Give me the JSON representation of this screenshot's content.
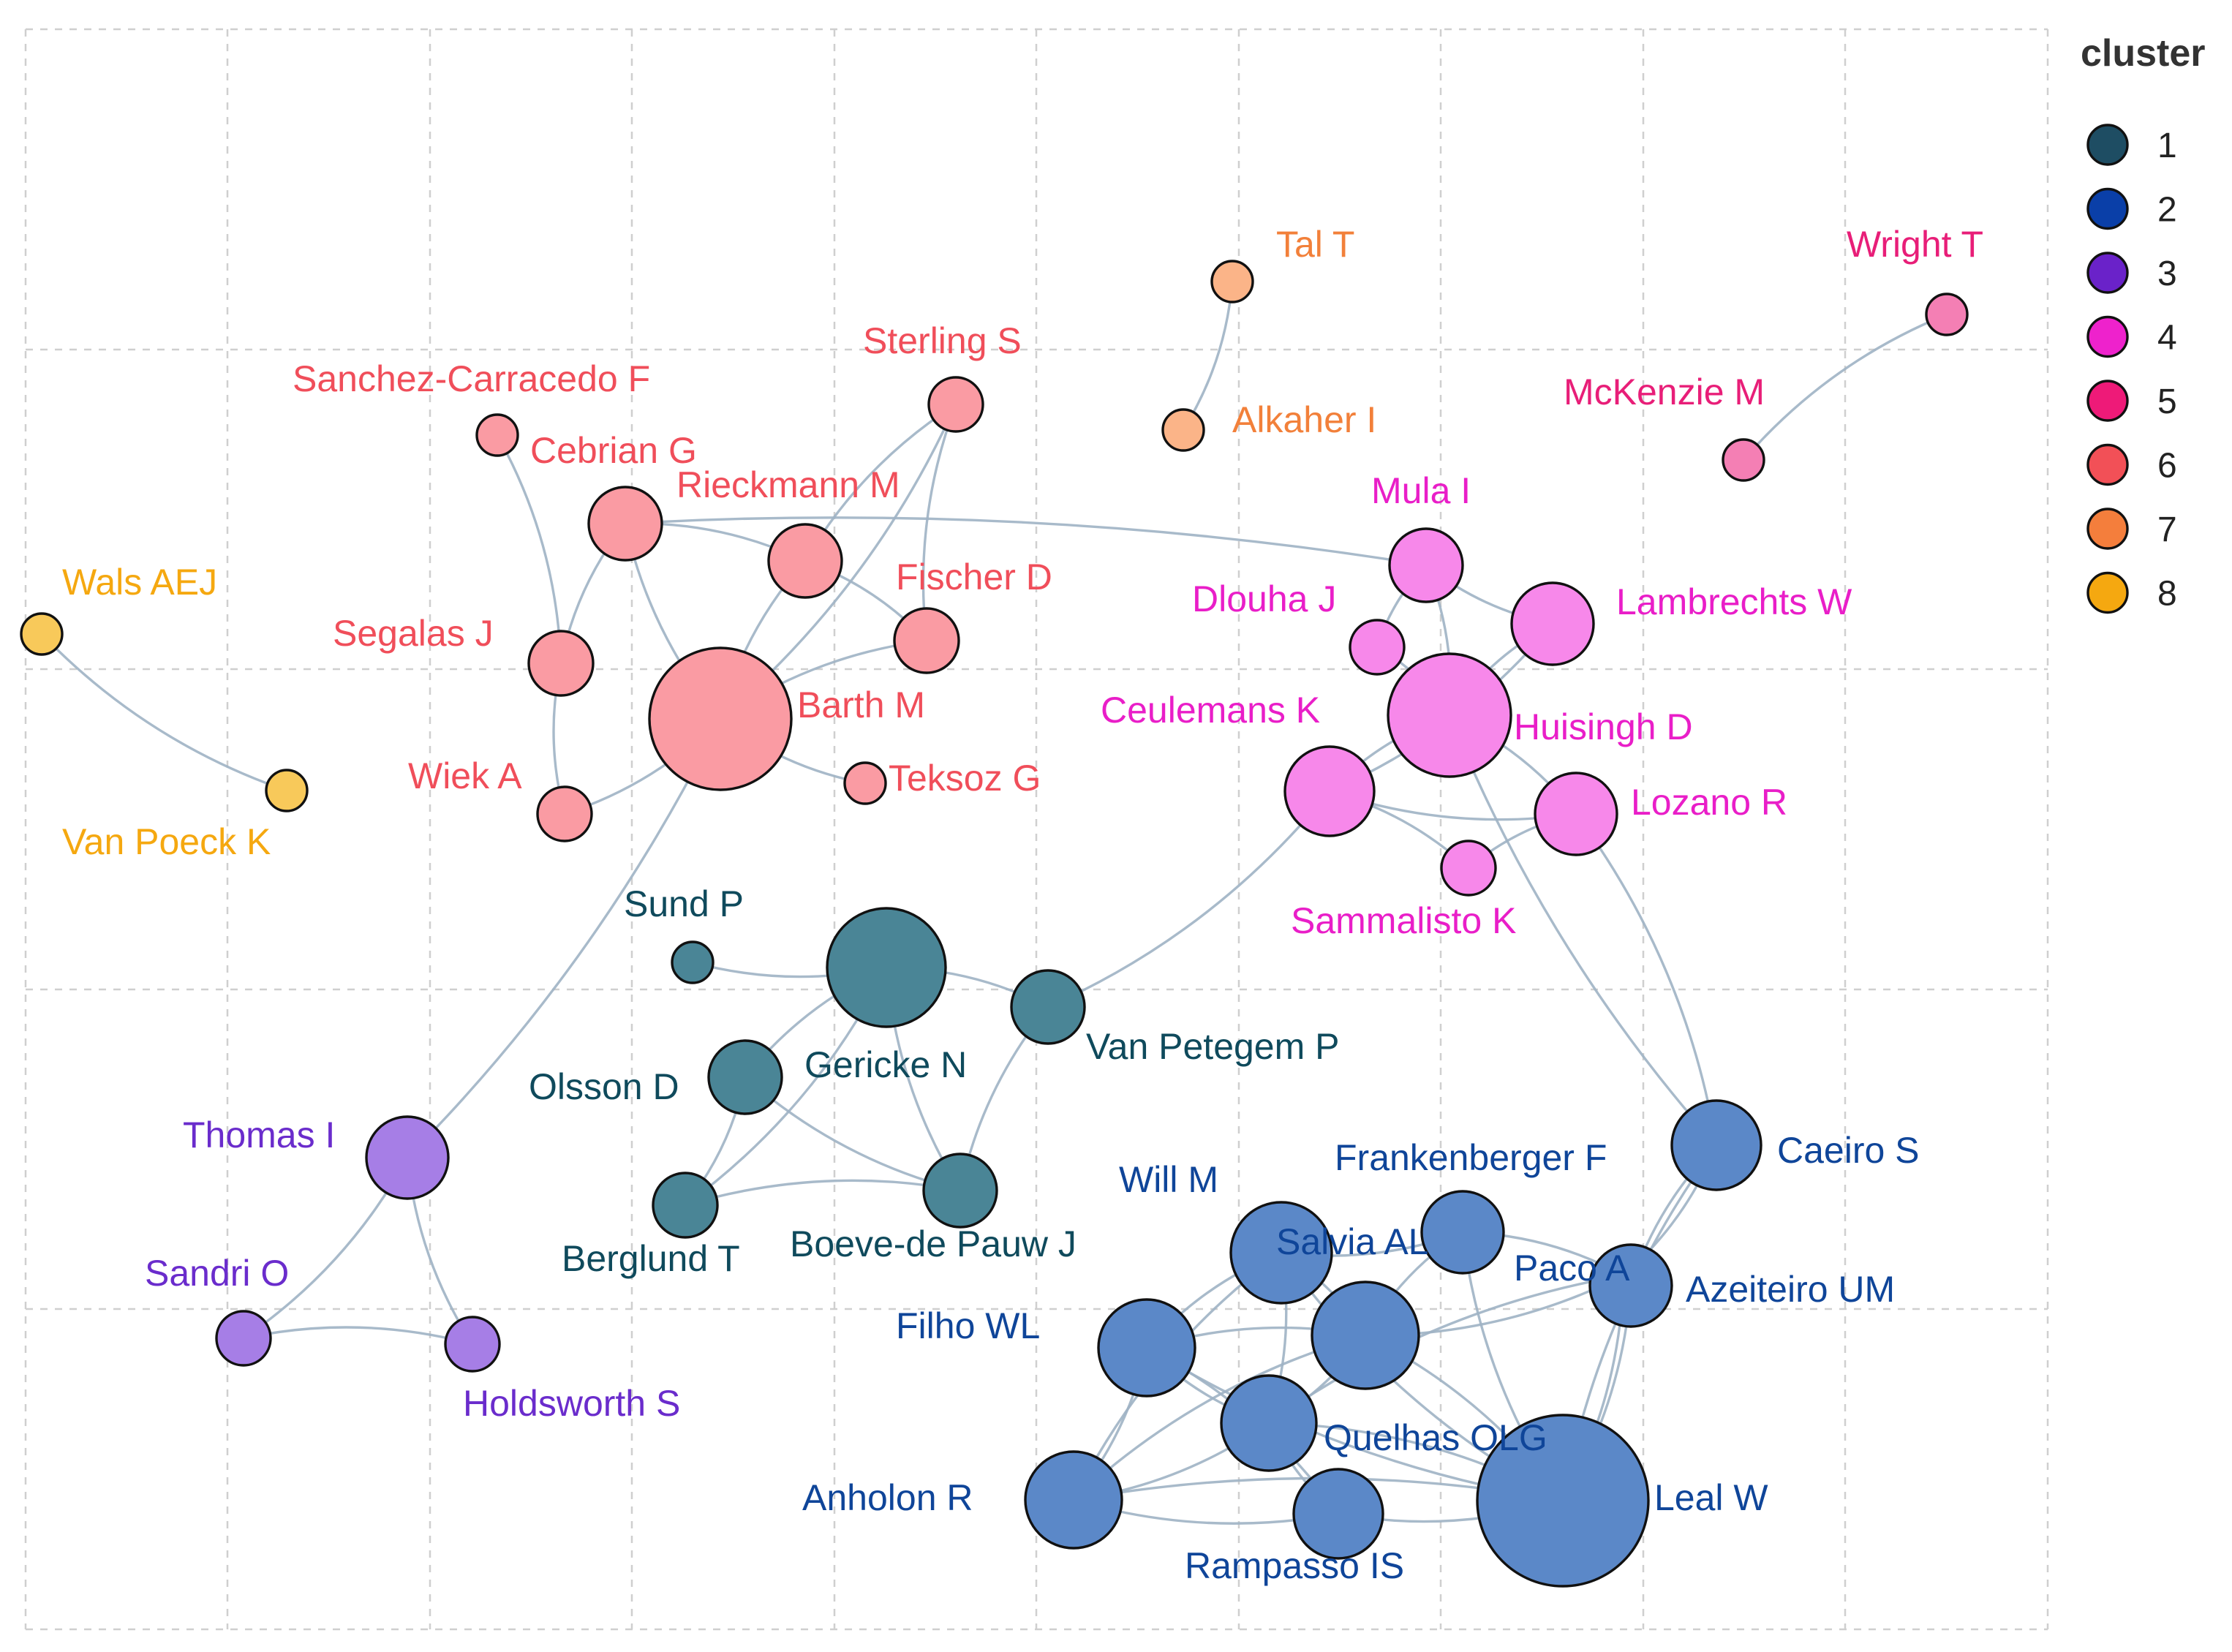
{
  "legend": {
    "title": "cluster",
    "items": [
      {
        "label": "1",
        "color": "#1e4d63"
      },
      {
        "label": "2",
        "color": "#0a3fa8"
      },
      {
        "label": "3",
        "color": "#6a22c9"
      },
      {
        "label": "4",
        "color": "#ee22cc"
      },
      {
        "label": "5",
        "color": "#ee1a78"
      },
      {
        "label": "6",
        "color": "#f25057"
      },
      {
        "label": "7",
        "color": "#f47e3c"
      },
      {
        "label": "8",
        "color": "#f5a810"
      }
    ]
  },
  "cluster_styles": {
    "1": {
      "fill": "#4a8596",
      "text": "#0f4a5c"
    },
    "2": {
      "fill": "#5b88c8",
      "text": "#0f4599"
    },
    "3": {
      "fill": "#a67ee6",
      "text": "#6a2ccc"
    },
    "4": {
      "fill": "#f788ea",
      "text": "#e91ec8"
    },
    "5": {
      "fill": "#f47fb4",
      "text": "#e81e78"
    },
    "6": {
      "fill": "#fa9ba3",
      "text": "#f04e5a"
    },
    "7": {
      "fill": "#fbb488",
      "text": "#f2803a"
    },
    "8": {
      "fill": "#f8c95a",
      "text": "#f5a810"
    }
  },
  "nodes": [
    {
      "id": "wals",
      "label": "Wals AEJ",
      "cluster": "8",
      "size": "small"
    },
    {
      "id": "vanpoeck",
      "label": "Van Poeck K",
      "cluster": "8",
      "size": "small"
    },
    {
      "id": "tal",
      "label": "Tal T",
      "cluster": "7",
      "size": "small"
    },
    {
      "id": "alkaher",
      "label": "Alkaher I",
      "cluster": "7",
      "size": "small"
    },
    {
      "id": "wright",
      "label": "Wright T",
      "cluster": "5",
      "size": "small"
    },
    {
      "id": "mckenzie",
      "label": "McKenzie M",
      "cluster": "5",
      "size": "small"
    },
    {
      "id": "sanchez",
      "label": "Sanchez-Carracedo F",
      "cluster": "6",
      "size": "small"
    },
    {
      "id": "cebrian",
      "label": "Cebrian G",
      "cluster": "6",
      "size": "medium"
    },
    {
      "id": "sterling",
      "label": "Sterling S",
      "cluster": "6",
      "size": "medium"
    },
    {
      "id": "rieckmann",
      "label": "Rieckmann M",
      "cluster": "6",
      "size": "medium"
    },
    {
      "id": "fischer",
      "label": "Fischer D",
      "cluster": "6",
      "size": "medium"
    },
    {
      "id": "segalas",
      "label": "Segalas J",
      "cluster": "6",
      "size": "medium"
    },
    {
      "id": "barth",
      "label": "Barth M",
      "cluster": "6",
      "size": "large"
    },
    {
      "id": "teksoz",
      "label": "Teksoz G",
      "cluster": "6",
      "size": "small"
    },
    {
      "id": "wiek",
      "label": "Wiek A",
      "cluster": "6",
      "size": "medium"
    },
    {
      "id": "mula",
      "label": "Mula I",
      "cluster": "4",
      "size": "medium"
    },
    {
      "id": "dlouha",
      "label": "Dlouha J",
      "cluster": "4",
      "size": "small"
    },
    {
      "id": "lambrechts",
      "label": "Lambrechts W",
      "cluster": "4",
      "size": "medium"
    },
    {
      "id": "huisingh",
      "label": "Huisingh D",
      "cluster": "4",
      "size": "large"
    },
    {
      "id": "ceulemans",
      "label": "Ceulemans K",
      "cluster": "4",
      "size": "medium"
    },
    {
      "id": "lozano",
      "label": "Lozano R",
      "cluster": "4",
      "size": "medium"
    },
    {
      "id": "sammalisto",
      "label": "Sammalisto K",
      "cluster": "4",
      "size": "small"
    },
    {
      "id": "sund",
      "label": "Sund P",
      "cluster": "1",
      "size": "small"
    },
    {
      "id": "gericke",
      "label": "Gericke N",
      "cluster": "1",
      "size": "large"
    },
    {
      "id": "vanpetegem",
      "label": "Van Petegem P",
      "cluster": "1",
      "size": "medium"
    },
    {
      "id": "olsson",
      "label": "Olsson D",
      "cluster": "1",
      "size": "medium"
    },
    {
      "id": "berglund",
      "label": "Berglund T",
      "cluster": "1",
      "size": "medium"
    },
    {
      "id": "boeve",
      "label": "Boeve-de Pauw J",
      "cluster": "1",
      "size": "medium"
    },
    {
      "id": "thomas",
      "label": "Thomas I",
      "cluster": "3",
      "size": "medium"
    },
    {
      "id": "sandri",
      "label": "Sandri O",
      "cluster": "3",
      "size": "small"
    },
    {
      "id": "holdsworth",
      "label": "Holdsworth S",
      "cluster": "3",
      "size": "small"
    },
    {
      "id": "caeiro",
      "label": "Caeiro S",
      "cluster": "2",
      "size": "medium"
    },
    {
      "id": "frankenberger",
      "label": "Frankenberger F",
      "cluster": "2",
      "size": "medium"
    },
    {
      "id": "will",
      "label": "Will M",
      "cluster": "2",
      "size": "medium"
    },
    {
      "id": "salvia",
      "label": "Salvia AL",
      "cluster": "2",
      "size": "medium"
    },
    {
      "id": "paco",
      "label": "Paco A",
      "cluster": "2",
      "size": "medium"
    },
    {
      "id": "azeiteiro",
      "label": "Azeiteiro UM",
      "cluster": "2",
      "size": "medium"
    },
    {
      "id": "filho",
      "label": "Filho WL",
      "cluster": "2",
      "size": "medium"
    },
    {
      "id": "quelhas",
      "label": "Quelhas OLG",
      "cluster": "2",
      "size": "medium"
    },
    {
      "id": "anholon",
      "label": "Anholon R",
      "cluster": "2",
      "size": "medium"
    },
    {
      "id": "rampasso",
      "label": "Rampasso IS",
      "cluster": "2",
      "size": "medium"
    },
    {
      "id": "lealw",
      "label": "Leal W",
      "cluster": "2",
      "size": "large"
    }
  ],
  "edges": [
    [
      "wals",
      "vanpoeck"
    ],
    [
      "tal",
      "alkaher"
    ],
    [
      "wright",
      "mckenzie"
    ],
    [
      "sanchez",
      "segalas"
    ],
    [
      "cebrian",
      "segalas"
    ],
    [
      "cebrian",
      "rieckmann"
    ],
    [
      "cebrian",
      "barth"
    ],
    [
      "cebrian",
      "mula"
    ],
    [
      "sterling",
      "rieckmann"
    ],
    [
      "sterling",
      "barth"
    ],
    [
      "sterling",
      "fischer"
    ],
    [
      "rieckmann",
      "fischer"
    ],
    [
      "rieckmann",
      "barth"
    ],
    [
      "barth",
      "fischer"
    ],
    [
      "barth",
      "teksoz"
    ],
    [
      "barth",
      "wiek"
    ],
    [
      "segalas",
      "wiek"
    ],
    [
      "barth",
      "thomas"
    ],
    [
      "mula",
      "lambrechts"
    ],
    [
      "mula",
      "huisingh"
    ],
    [
      "mula",
      "dlouha"
    ],
    [
      "dlouha",
      "huisingh"
    ],
    [
      "lambrechts",
      "huisingh"
    ],
    [
      "lambrechts",
      "ceulemans"
    ],
    [
      "huisingh",
      "ceulemans"
    ],
    [
      "huisingh",
      "lozano"
    ],
    [
      "ceulemans",
      "lozano"
    ],
    [
      "ceulemans",
      "sammalisto"
    ],
    [
      "lozano",
      "sammalisto"
    ],
    [
      "lozano",
      "caeiro"
    ],
    [
      "huisingh",
      "caeiro"
    ],
    [
      "ceulemans",
      "vanpetegem"
    ],
    [
      "sund",
      "gericke"
    ],
    [
      "gericke",
      "vanpetegem"
    ],
    [
      "gericke",
      "olsson"
    ],
    [
      "gericke",
      "berglund"
    ],
    [
      "gericke",
      "boeve"
    ],
    [
      "olsson",
      "berglund"
    ],
    [
      "olsson",
      "boeve"
    ],
    [
      "berglund",
      "boeve"
    ],
    [
      "vanpetegem",
      "boeve"
    ],
    [
      "thomas",
      "sandri"
    ],
    [
      "thomas",
      "holdsworth"
    ],
    [
      "sandri",
      "holdsworth"
    ],
    [
      "caeiro",
      "azeiteiro"
    ],
    [
      "caeiro",
      "paco"
    ],
    [
      "paco",
      "azeiteiro"
    ],
    [
      "will",
      "salvia"
    ],
    [
      "will",
      "filho"
    ],
    [
      "will",
      "quelhas"
    ],
    [
      "will",
      "frankenberger"
    ],
    [
      "salvia",
      "frankenberger"
    ],
    [
      "salvia",
      "filho"
    ],
    [
      "salvia",
      "quelhas"
    ],
    [
      "salvia",
      "paco"
    ],
    [
      "salvia",
      "lealw"
    ],
    [
      "salvia",
      "anholon"
    ],
    [
      "frankenberger",
      "paco"
    ],
    [
      "frankenberger",
      "lealw"
    ],
    [
      "paco",
      "lealw"
    ],
    [
      "filho",
      "quelhas"
    ],
    [
      "filho",
      "anholon"
    ],
    [
      "filho",
      "lealw"
    ],
    [
      "quelhas",
      "anholon"
    ],
    [
      "quelhas",
      "rampasso"
    ],
    [
      "quelhas",
      "lealw"
    ],
    [
      "anholon",
      "rampasso"
    ],
    [
      "anholon",
      "lealw"
    ],
    [
      "rampasso",
      "lealw"
    ],
    [
      "azeiteiro",
      "lealw"
    ],
    [
      "caeiro",
      "lealw"
    ],
    [
      "filho",
      "rampasso"
    ],
    [
      "will",
      "lealw"
    ],
    [
      "quelhas",
      "paco"
    ],
    [
      "will",
      "anholon"
    ]
  ]
}
